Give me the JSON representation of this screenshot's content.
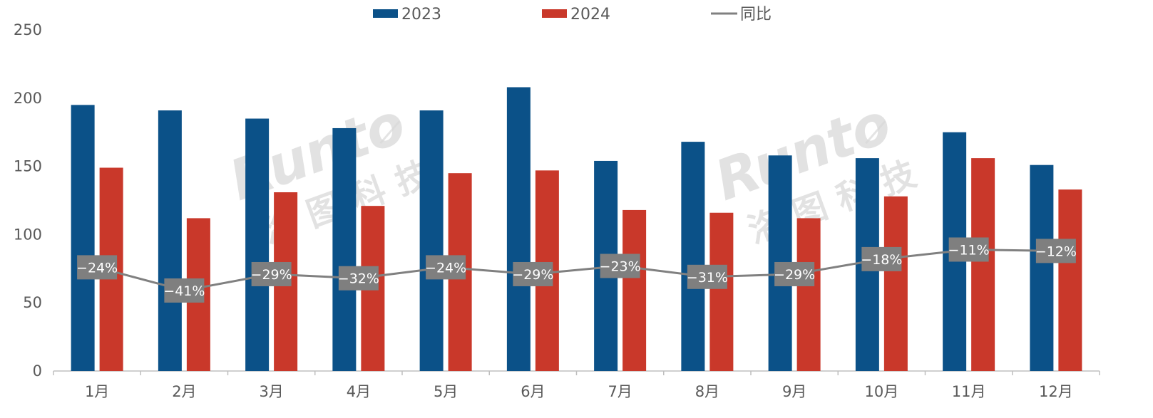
{
  "chart_data": {
    "type": "bar",
    "categories": [
      "1月",
      "2月",
      "3月",
      "4月",
      "5月",
      "6月",
      "7月",
      "8月",
      "9月",
      "10月",
      "11月",
      "12月"
    ],
    "series": [
      {
        "name": "2023",
        "values": [
          195,
          191,
          185,
          178,
          191,
          208,
          154,
          168,
          158,
          156,
          175,
          151
        ],
        "color": "#0b5188"
      },
      {
        "name": "2024",
        "values": [
          149,
          112,
          131,
          121,
          145,
          147,
          118,
          116,
          112,
          128,
          156,
          133
        ],
        "color": "#c9382a"
      }
    ],
    "line_series": {
      "name": "同比",
      "values": [
        -24,
        -41,
        -29,
        -32,
        -24,
        -29,
        -23,
        -31,
        -29,
        -18,
        -11,
        -12
      ],
      "labels": [
        "−24%",
        "−41%",
        "−29%",
        "−32%",
        "−24%",
        "−29%",
        "−23%",
        "−31%",
        "−29%",
        "−18%",
        "−11%",
        "−12%"
      ],
      "color": "#808080"
    },
    "y_axis": {
      "ticks": [
        0,
        50,
        100,
        150,
        200,
        250
      ],
      "range": [
        0,
        250
      ]
    },
    "legend_position": "top",
    "grid": false
  },
  "watermark": {
    "brand": "Runto",
    "chinese": "洛图科技"
  }
}
